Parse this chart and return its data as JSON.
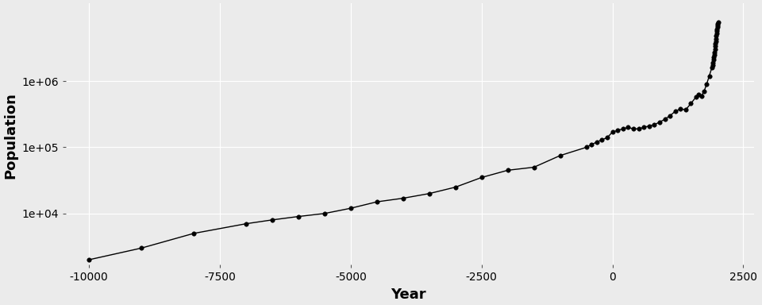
{
  "xlabel": "Year",
  "ylabel": "Population",
  "background_color": "#EBEBEB",
  "line_color": "#000000",
  "marker_color": "#000000",
  "grid_color": "#FFFFFF",
  "years": [
    -10000,
    -9000,
    -8000,
    -7000,
    -6500,
    -6000,
    -5500,
    -5000,
    -4500,
    -4000,
    -3500,
    -3000,
    -2500,
    -2000,
    -1500,
    -1000,
    -500,
    -400,
    -300,
    -200,
    -100,
    0,
    100,
    200,
    300,
    400,
    500,
    600,
    700,
    800,
    900,
    1000,
    1100,
    1200,
    1300,
    1400,
    1500,
    1600,
    1650,
    1700,
    1750,
    1800,
    1850,
    1900,
    1910,
    1920,
    1930,
    1940,
    1950,
    1955,
    1960,
    1965,
    1970,
    1975,
    1980,
    1985,
    1990,
    1995,
    2000,
    2005,
    2010,
    2015,
    2020
  ],
  "populations": [
    2000,
    3000,
    5000,
    7000,
    8000,
    9000,
    10000,
    12000,
    15000,
    17000,
    20000,
    25000,
    35000,
    45000,
    50000,
    75000,
    100000,
    110000,
    120000,
    130000,
    140000,
    170000,
    180000,
    190000,
    200000,
    190000,
    190000,
    200000,
    210000,
    220000,
    240000,
    265000,
    300000,
    350000,
    380000,
    370000,
    460000,
    580000,
    620000,
    600000,
    700000,
    900000,
    1200000,
    1600000,
    1750000,
    1900000,
    2100000,
    2300000,
    2500000,
    2750000,
    3000000,
    3350000,
    3700000,
    4000000,
    4400000,
    4850000,
    5300000,
    5700000,
    6100000,
    6500000,
    6900000,
    7300000,
    7800000
  ],
  "ylim_log": [
    1500,
    15000000
  ],
  "xlim": [
    -10500,
    2700
  ],
  "yticks": [
    10000,
    100000,
    1000000
  ],
  "xticks": [
    -10000,
    -7500,
    -5000,
    -2500,
    0,
    2500
  ],
  "marker_size": 4,
  "line_width": 1.0,
  "font_size_axis_label": 13,
  "font_size_tick": 10,
  "figsize": [
    9.6,
    3.84
  ],
  "dpi": 100
}
